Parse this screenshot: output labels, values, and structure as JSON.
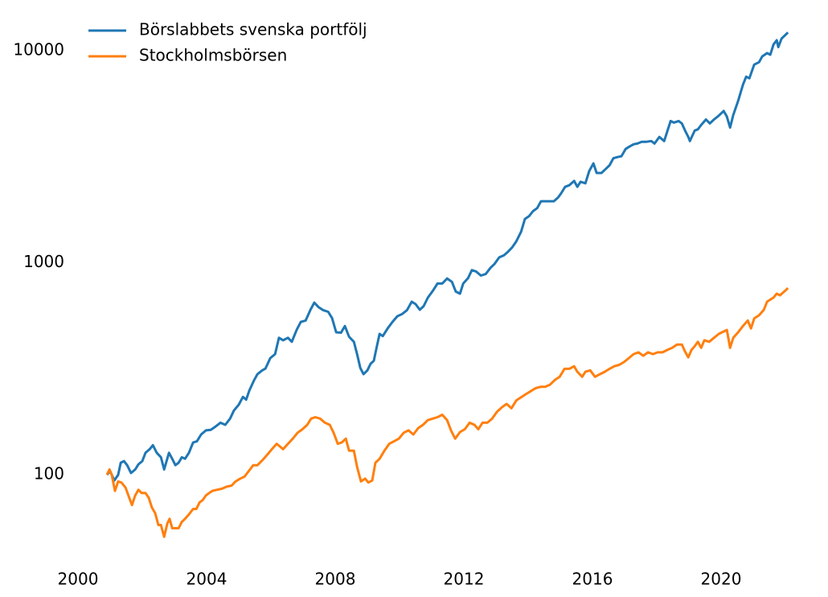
{
  "chart_data": {
    "type": "line",
    "log_y": true,
    "grid": false,
    "legend": "upper left",
    "xlim": [
      2000,
      2023
    ],
    "xticks": [
      2000,
      2004,
      2008,
      2012,
      2016,
      2020
    ],
    "ylim": [
      40,
      14000
    ],
    "yticks": [
      100,
      1000,
      10000
    ],
    "series": [
      {
        "name": "Börslabbets svenska portfölj",
        "color": "#1f77b4",
        "x": [
          2000.9,
          2001.0,
          2001.13,
          2001.25,
          2001.33,
          2001.43,
          2001.53,
          2001.65,
          2001.78,
          2001.88,
          2002.0,
          2002.1,
          2002.23,
          2002.33,
          2002.45,
          2002.58,
          2002.68,
          2002.83,
          2002.93,
          2003.03,
          2003.13,
          2003.23,
          2003.33,
          2003.45,
          2003.58,
          2003.7,
          2003.83,
          2003.98,
          2004.13,
          2004.28,
          2004.43,
          2004.58,
          2004.73,
          2004.85,
          2005.0,
          2005.13,
          2005.23,
          2005.33,
          2005.48,
          2005.58,
          2005.73,
          2005.83,
          2005.98,
          2006.13,
          2006.25,
          2006.38,
          2006.53,
          2006.65,
          2006.8,
          2006.93,
          2007.08,
          2007.23,
          2007.35,
          2007.48,
          2007.63,
          2007.78,
          2007.9,
          2008.03,
          2008.18,
          2008.3,
          2008.43,
          2008.58,
          2008.68,
          2008.78,
          2008.88,
          2009.0,
          2009.1,
          2009.2,
          2009.3,
          2009.38,
          2009.48,
          2009.63,
          2009.78,
          2009.93,
          2010.08,
          2010.23,
          2010.38,
          2010.5,
          2010.63,
          2010.75,
          2010.88,
          2011.03,
          2011.18,
          2011.33,
          2011.48,
          2011.63,
          2011.75,
          2011.88,
          2011.98,
          2012.13,
          2012.25,
          2012.38,
          2012.53,
          2012.68,
          2012.83,
          2012.95,
          2013.1,
          2013.25,
          2013.38,
          2013.5,
          2013.63,
          2013.78,
          2013.9,
          2014.03,
          2014.15,
          2014.28,
          2014.4,
          2014.53,
          2014.68,
          2014.8,
          2014.93,
          2015.03,
          2015.15,
          2015.28,
          2015.43,
          2015.53,
          2015.63,
          2015.78,
          2015.9,
          2016.03,
          2016.13,
          2016.28,
          2016.4,
          2016.53,
          2016.65,
          2016.78,
          2016.9,
          2017.03,
          2017.15,
          2017.28,
          2017.4,
          2017.53,
          2017.68,
          2017.83,
          2017.93,
          2018.08,
          2018.23,
          2018.43,
          2018.53,
          2018.68,
          2018.78,
          2018.88,
          2018.98,
          2019.03,
          2019.18,
          2019.28,
          2019.38,
          2019.53,
          2019.65,
          2019.78,
          2019.93,
          2020.08,
          2020.18,
          2020.28,
          2020.38,
          2020.53,
          2020.68,
          2020.78,
          2020.88,
          2021.03,
          2021.18,
          2021.28,
          2021.43,
          2021.53,
          2021.63,
          2021.73,
          2021.78,
          2021.88,
          2022.08
        ],
        "values": [
          100,
          104,
          94,
          100,
          114,
          116,
          111,
          102,
          106,
          112,
          116,
          127,
          132,
          138,
          127,
          121,
          106,
          127,
          119,
          111,
          114,
          121,
          119,
          127,
          142,
          144,
          155,
          162,
          163,
          169,
          176,
          172,
          184,
          201,
          214,
          233,
          226,
          250,
          280,
          298,
          311,
          317,
          355,
          371,
          443,
          431,
          443,
          424,
          482,
          526,
          534,
          600,
          649,
          618,
          597,
          587,
          549,
          470,
          468,
          503,
          448,
          424,
          371,
          319,
          298,
          311,
          334,
          345,
          407,
          462,
          451,
          490,
          526,
          559,
          573,
          597,
          655,
          638,
          600,
          624,
          684,
          735,
          798,
          798,
          843,
          813,
          731,
          715,
          798,
          845,
          923,
          910,
          870,
          885,
          947,
          986,
          1060,
          1085,
          1130,
          1180,
          1260,
          1400,
          1610,
          1660,
          1750,
          1810,
          1950,
          1950,
          1950,
          1950,
          2030,
          2130,
          2280,
          2320,
          2430,
          2280,
          2410,
          2370,
          2710,
          2940,
          2650,
          2650,
          2760,
          2880,
          3110,
          3150,
          3180,
          3440,
          3530,
          3620,
          3650,
          3720,
          3720,
          3750,
          3650,
          3920,
          3750,
          4660,
          4580,
          4660,
          4540,
          4200,
          3920,
          3750,
          4200,
          4260,
          4460,
          4740,
          4540,
          4740,
          4940,
          5200,
          4890,
          4340,
          4980,
          5800,
          6910,
          7540,
          7410,
          8600,
          8830,
          9400,
          9740,
          9570,
          10700,
          11200,
          10400,
          11400,
          12200
        ]
      },
      {
        "name": "Stockholmsbörsen",
        "color": "#ff7f0e",
        "x": [
          2000.9,
          2000.98,
          2001.05,
          2001.15,
          2001.25,
          2001.35,
          2001.48,
          2001.58,
          2001.68,
          2001.78,
          2001.88,
          2001.98,
          2002.1,
          2002.2,
          2002.3,
          2002.4,
          2002.5,
          2002.58,
          2002.68,
          2002.78,
          2002.85,
          2002.93,
          2003.03,
          2003.13,
          2003.23,
          2003.33,
          2003.45,
          2003.58,
          2003.68,
          2003.78,
          2003.88,
          2003.98,
          2004.08,
          2004.18,
          2004.33,
          2004.48,
          2004.63,
          2004.78,
          2004.9,
          2005.05,
          2005.18,
          2005.33,
          2005.45,
          2005.58,
          2005.73,
          2005.88,
          2006.03,
          2006.18,
          2006.28,
          2006.38,
          2006.53,
          2006.68,
          2006.83,
          2006.98,
          2007.13,
          2007.25,
          2007.38,
          2007.53,
          2007.68,
          2007.83,
          2007.95,
          2008.08,
          2008.2,
          2008.33,
          2008.43,
          2008.58,
          2008.68,
          2008.8,
          2008.93,
          2009.03,
          2009.15,
          2009.25,
          2009.38,
          2009.53,
          2009.68,
          2009.83,
          2009.98,
          2010.13,
          2010.28,
          2010.43,
          2010.58,
          2010.73,
          2010.88,
          2011.03,
          2011.18,
          2011.33,
          2011.48,
          2011.6,
          2011.73,
          2011.88,
          2012.03,
          2012.18,
          2012.33,
          2012.45,
          2012.58,
          2012.73,
          2012.88,
          2013.03,
          2013.18,
          2013.33,
          2013.48,
          2013.63,
          2013.78,
          2013.93,
          2014.08,
          2014.23,
          2014.38,
          2014.53,
          2014.68,
          2014.83,
          2014.98,
          2015.13,
          2015.28,
          2015.43,
          2015.53,
          2015.68,
          2015.78,
          2015.93,
          2016.08,
          2016.23,
          2016.38,
          2016.53,
          2016.68,
          2016.83,
          2016.98,
          2017.13,
          2017.28,
          2017.43,
          2017.58,
          2017.73,
          2017.88,
          2018.03,
          2018.18,
          2018.33,
          2018.48,
          2018.63,
          2018.78,
          2018.88,
          2018.98,
          2019.08,
          2019.18,
          2019.28,
          2019.38,
          2019.48,
          2019.63,
          2019.78,
          2019.93,
          2020.03,
          2020.18,
          2020.28,
          2020.38,
          2020.53,
          2020.68,
          2020.83,
          2020.93,
          2021.03,
          2021.18,
          2021.33,
          2021.43,
          2021.53,
          2021.63,
          2021.73,
          2021.83,
          2021.98,
          2022.08
        ],
        "values": [
          100,
          106,
          100,
          84,
          93,
          92,
          87,
          79,
          72,
          80,
          85,
          82,
          82,
          78,
          70,
          66,
          58,
          58,
          51,
          59,
          62,
          56,
          56,
          56,
          60,
          62,
          65,
          69,
          69,
          74,
          76,
          80,
          82,
          84,
          85,
          86,
          88,
          89,
          93,
          96,
          98,
          105,
          111,
          111,
          117,
          124,
          132,
          140,
          136,
          132,
          140,
          148,
          158,
          164,
          172,
          184,
          187,
          184,
          176,
          172,
          158,
          140,
          142,
          148,
          130,
          130,
          109,
          93,
          96,
          92,
          94,
          114,
          119,
          130,
          140,
          144,
          148,
          158,
          162,
          155,
          166,
          172,
          181,
          184,
          187,
          192,
          181,
          162,
          148,
          159,
          164,
          176,
          172,
          164,
          176,
          176,
          184,
          198,
          208,
          216,
          206,
          224,
          232,
          240,
          248,
          256,
          260,
          260,
          266,
          280,
          290,
          316,
          316,
          325,
          306,
          290,
          306,
          311,
          290,
          298,
          306,
          316,
          325,
          330,
          340,
          355,
          371,
          378,
          364,
          378,
          371,
          378,
          378,
          388,
          397,
          411,
          411,
          381,
          358,
          388,
          404,
          424,
          397,
          431,
          424,
          443,
          462,
          470,
          482,
          397,
          443,
          470,
          503,
          534,
          490,
          546,
          565,
          600,
          655,
          670,
          685,
          715,
          702,
          735,
          760
        ]
      }
    ]
  }
}
